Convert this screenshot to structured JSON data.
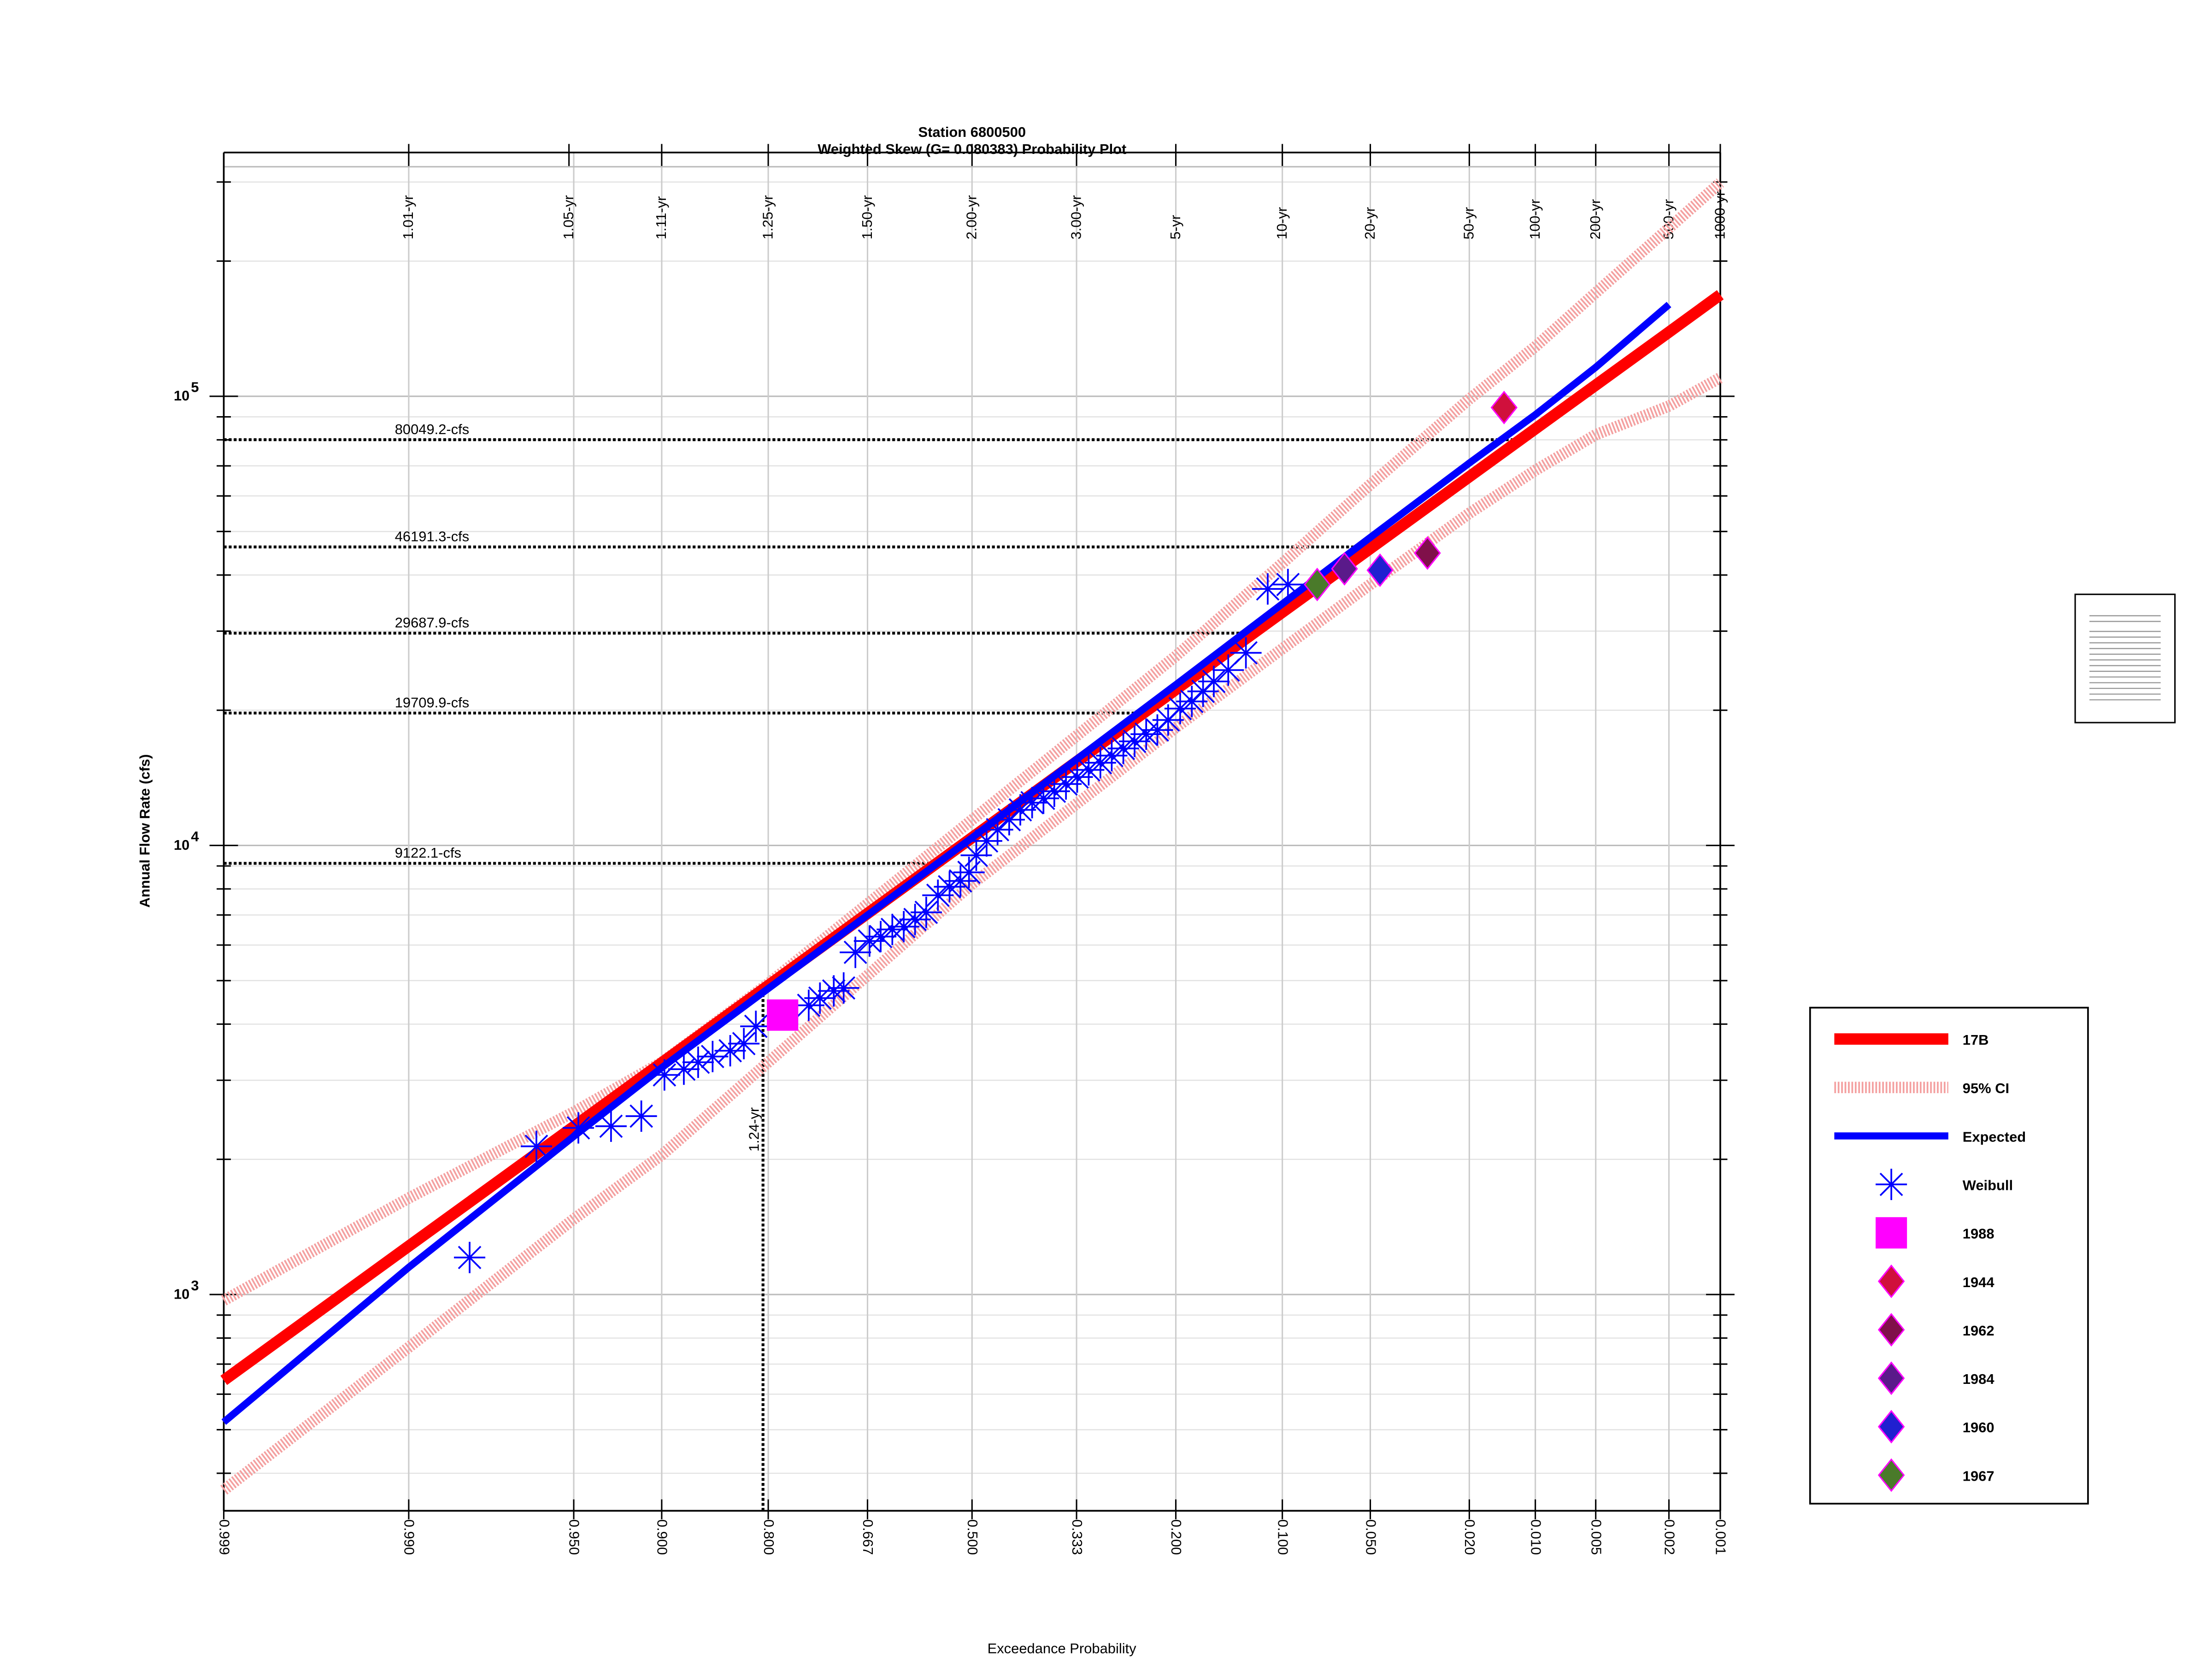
{
  "chart_data": {
    "type": "probability",
    "title": "Station 6800500",
    "subtitle": "Weighted Skew (G= 0.080383) Probability Plot",
    "xlabel": "Exceedance Probability",
    "ylabel": "Annual Flow Rate (cfs)",
    "xscale": "normal",
    "yscale": "log",
    "grid": true,
    "legend": "right",
    "xlim": [
      0.999,
      0.001
    ],
    "ylim": [
      330,
      349000
    ],
    "xticks": [
      0.999,
      {
        "value": 0.99,
        "label": "0.990"
      },
      {
        "value": 0.95,
        "label": "0.950"
      },
      {
        "value": 0.9,
        "label": "0.900"
      },
      {
        "value": 0.8,
        "label": "0.800"
      },
      0.667,
      {
        "value": 0.5,
        "label": "0.500"
      },
      0.333,
      {
        "value": 0.2,
        "label": "0.200"
      },
      {
        "value": 0.1,
        "label": "0.100"
      },
      {
        "value": 0.05,
        "label": "0.050"
      },
      {
        "value": 0.02,
        "label": "0.020"
      },
      {
        "value": 0.01,
        "label": "0.010"
      },
      0.005,
      0.002,
      0.001
    ],
    "x2ticks": [
      {
        "value": 0.99,
        "label": "1.01-yr"
      },
      {
        "value": 0.952,
        "label": "1.05-yr"
      },
      {
        "value": 0.9,
        "label": "1.11-yr"
      },
      {
        "value": 0.8,
        "label": "1.25-yr"
      },
      {
        "value": 0.667,
        "label": "1.50-yr"
      },
      {
        "value": 0.5,
        "label": "2.00-yr"
      },
      {
        "value": 0.333,
        "label": "3.00-yr"
      },
      {
        "value": 0.2,
        "label": "5-yr"
      },
      {
        "value": 0.1,
        "label": "10-yr"
      },
      {
        "value": 0.05,
        "label": "20-yr"
      },
      {
        "value": 0.02,
        "label": "50-yr"
      },
      {
        "value": 0.01,
        "label": "100-yr"
      },
      {
        "value": 0.005,
        "label": "200-yr"
      },
      {
        "value": 0.002,
        "label": "500-yr"
      },
      {
        "value": 0.001,
        "label": "1000-yr"
      }
    ],
    "yticks": [
      {
        "value": 1000,
        "label": "10",
        "exponent": "3"
      },
      {
        "value": 10000,
        "label": "10",
        "exponent": "4"
      },
      {
        "value": 100000,
        "label": "10",
        "exponent": "5"
      }
    ],
    "yminorticks": [
      400,
      500,
      600,
      700,
      800,
      900,
      2000,
      3000,
      4000,
      5000,
      6000,
      7000,
      8000,
      9000,
      20000,
      30000,
      40000,
      50000,
      60000,
      70000,
      80000,
      90000,
      200000,
      300000
    ],
    "series": [
      {
        "name": "17B",
        "color": "#ff0000",
        "style": "line",
        "x": [
          0.999,
          0.99,
          0.95,
          0.9,
          0.8,
          0.5,
          0.2,
          0.1,
          0.05,
          0.02,
          0.01,
          0.005,
          0.002,
          0.001
        ],
        "values": [
          644,
          1282,
          2366,
          3281,
          4875,
          10410,
          22230,
          33040,
          45800,
          66200,
          84600,
          105900,
          139000,
          168300
        ]
      },
      {
        "name": "95% CI",
        "color": "#f4a0a0",
        "style": "hatched",
        "x": [
          0.999,
          0.99,
          0.95,
          0.9,
          0.8,
          0.5,
          0.2,
          0.1,
          0.05,
          0.02,
          0.01,
          0.005,
          0.002,
          0.001
        ],
        "values": [
          970,
          1640,
          2550,
          3290,
          4920,
          11400,
          26400,
          42500,
          63600,
          98600,
          129000,
          170000,
          237000,
          299000
        ],
        "lower_values": [
          367,
          763,
          1473,
          2045,
          3290,
          8200,
          18300,
          27400,
          38100,
          54900,
          68400,
          82100,
          95100,
          110000
        ]
      },
      {
        "name": "Expected",
        "color": "#0000ff",
        "style": "line",
        "x": [
          0.999,
          0.99,
          0.95,
          0.9,
          0.8,
          0.5,
          0.2,
          0.1,
          0.05,
          0.02,
          0.01,
          0.005,
          0.002
        ],
        "values": [
          520,
          1150,
          2250,
          3200,
          4800,
          10400,
          22800,
          34500,
          48500,
          71000,
          91000,
          116000,
          160000
        ]
      },
      {
        "name": "Weibull",
        "color": "#0000ff",
        "marker": "star",
        "x": [
          0.981,
          0.964,
          0.948,
          0.932,
          0.914,
          0.898,
          0.883,
          0.871,
          0.858,
          0.841,
          0.827,
          0.814,
          0.75,
          0.735,
          0.716,
          0.702,
          0.685,
          0.664,
          0.647,
          0.629,
          0.611,
          0.593,
          0.575,
          0.556,
          0.537,
          0.519,
          0.505,
          0.493,
          0.476,
          0.458,
          0.439,
          0.421,
          0.402,
          0.384,
          0.367,
          0.349,
          0.332,
          0.315,
          0.298,
          0.282,
          0.266,
          0.251,
          0.236,
          0.222,
          0.209,
          0.195,
          0.182,
          0.17,
          0.159,
          0.145,
          0.129,
          0.111,
          0.096
        ],
        "values": [
          1209,
          2138,
          2350,
          2370,
          2496,
          3083,
          3175,
          3290,
          3388,
          3490,
          3620,
          3955,
          4405,
          4571,
          4742,
          4815,
          5780,
          6125,
          6266,
          6500,
          6595,
          6840,
          7096,
          7745,
          8090,
          8335,
          8710,
          9506,
          10230,
          10840,
          11410,
          12000,
          12450,
          12730,
          13200,
          13700,
          14200,
          14730,
          15280,
          15850,
          16440,
          17050,
          17690,
          18070,
          19020,
          20170,
          20920,
          22030,
          23180,
          24570,
          26840,
          37240,
          38100
        ]
      },
      {
        "name": "1988",
        "color": "#ff00ff",
        "marker": "square",
        "x": [
          0.783
        ],
        "values": [
          4190
        ]
      },
      {
        "name": "1944",
        "color": "#d0103c",
        "marker": "diamond",
        "x": [
          0.014
        ],
        "values": [
          94400
        ]
      },
      {
        "name": "1962",
        "color": "#80104a",
        "marker": "diamond",
        "x": [
          0.03
        ],
        "values": [
          44770
        ]
      },
      {
        "name": "1984",
        "color": "#5a1a8a",
        "marker": "diamond",
        "x": [
          0.062
        ],
        "values": [
          41300
        ]
      },
      {
        "name": "1960",
        "color": "#2020d0",
        "marker": "diamond",
        "x": [
          0.046
        ],
        "values": [
          41000
        ]
      },
      {
        "name": "1967",
        "color": "#4a7a2a",
        "marker": "diamond",
        "x": [
          0.077
        ],
        "values": [
          38100
        ]
      }
    ],
    "reference_lines": [
      {
        "value": 80049.2,
        "label": "80049.2-cfs"
      },
      {
        "value": 46191.3,
        "label": "46191.3-cfs"
      },
      {
        "value": 29687.9,
        "label": "29687.9-cfs"
      },
      {
        "value": 19709.9,
        "label": "19709.9-cfs"
      },
      {
        "value": 9122.1,
        "label": "9122.1-cfs"
      }
    ],
    "vertical_line": {
      "value": 0.806,
      "label": "1.24-yr"
    }
  }
}
